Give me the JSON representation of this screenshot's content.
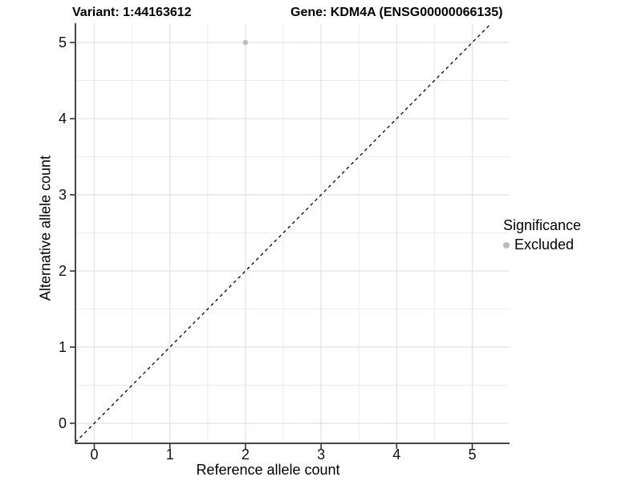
{
  "header": {
    "title_left": "Variant: 1:44163612",
    "title_right": "Gene: KDM4A (ENSG00000066135)"
  },
  "chart_data": {
    "type": "scatter",
    "title_left": "Variant: 1:44163612",
    "title_right": "Gene: KDM4A (ENSG00000066135)",
    "xlabel": "Reference allele count",
    "ylabel": "Alternative allele count",
    "xlim": [
      -0.25,
      5.48
    ],
    "ylim": [
      -0.26,
      5.24
    ],
    "x_ticks": [
      0,
      1,
      2,
      3,
      4,
      5
    ],
    "y_ticks": [
      0,
      1,
      2,
      3,
      4,
      5
    ],
    "minor_grid_step": 0.5,
    "grid": true,
    "reference_line": {
      "equation": "y = x",
      "style": "dashed",
      "color": "#000000"
    },
    "series": [
      {
        "name": "Excluded",
        "color": "#bcbcbc",
        "points": [
          {
            "x": 2,
            "y": 5
          }
        ]
      }
    ],
    "legend": {
      "title": "Significance",
      "position": "right",
      "entries": [
        {
          "label": "Excluded",
          "color": "#bcbcbc"
        }
      ]
    },
    "colors": {
      "background": "#ffffff",
      "grid_major": "#e2e2e2",
      "grid_minor": "#ececec",
      "axis_line": "#464646",
      "tick_mark": "#333333",
      "tick_label": "#111111",
      "point": "#bcbcbc"
    }
  }
}
